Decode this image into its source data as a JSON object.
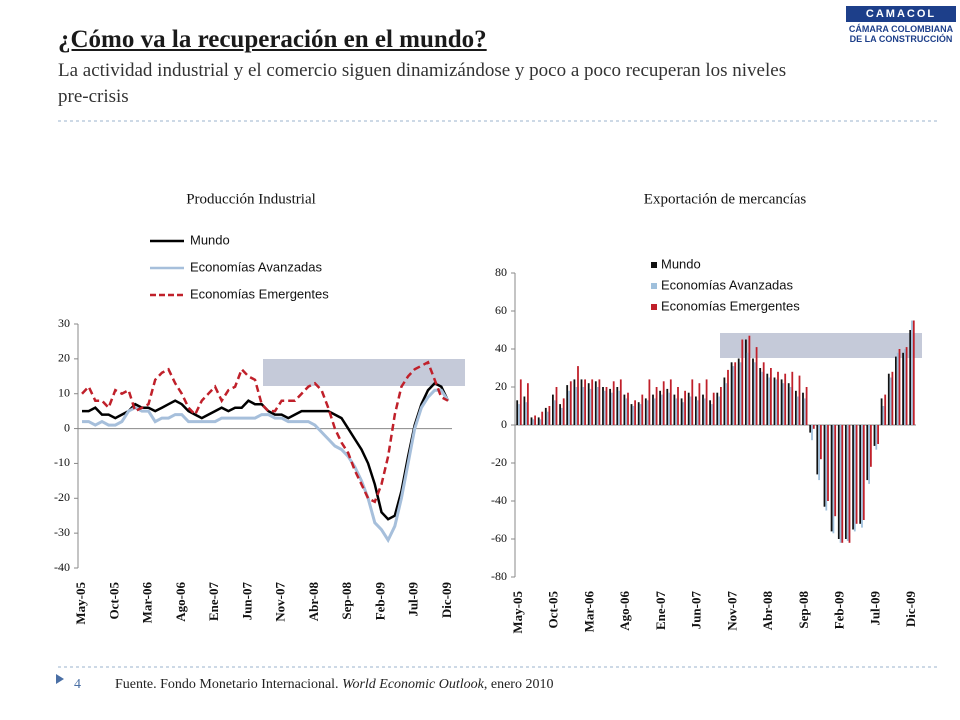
{
  "header": {
    "title": "¿Cómo va la recuperación en el mundo?",
    "subtitle": "La actividad industrial y el comercio siguen dinamizándose y poco a poco recuperan los niveles pre-crisis"
  },
  "logo": {
    "mark": "CAMACOL",
    "line1": "CÁMARA COLOMBIANA",
    "line2": "DE LA CONSTRUCCIÓN"
  },
  "footer": {
    "source_pre": "Fuente. Fondo Monetario Internacional. ",
    "source_italic": "World Economic Outlook",
    "source_post": ", enero 2010",
    "page": "4"
  },
  "chart_data": [
    {
      "type": "line",
      "title": "Producción Industrial",
      "categories": [
        "May-05",
        null,
        null,
        null,
        null,
        "Oct-05",
        null,
        null,
        null,
        null,
        "Mar-06",
        null,
        null,
        null,
        null,
        "Ago-06",
        null,
        null,
        null,
        null,
        "Ene-07",
        null,
        null,
        null,
        null,
        "Jun-07",
        null,
        null,
        null,
        null,
        "Nov-07",
        null,
        null,
        null,
        null,
        "Abr-08",
        null,
        null,
        null,
        null,
        "Sep-08",
        null,
        null,
        null,
        null,
        "Feb-09",
        null,
        null,
        null,
        null,
        "Jul-09",
        null,
        null,
        null,
        null,
        "Dic-09"
      ],
      "ylim": [
        -40,
        30
      ],
      "yticks": [
        -40,
        -30,
        -20,
        -10,
        0,
        10,
        20,
        30
      ],
      "series": [
        {
          "name": "Mundo",
          "color": "#000000",
          "values": [
            5,
            5,
            6,
            4,
            4,
            3,
            4,
            5,
            7,
            6,
            6,
            5,
            6,
            7,
            8,
            7,
            5,
            4,
            3,
            4,
            5,
            6,
            5,
            6,
            6,
            8,
            7,
            7,
            5,
            4,
            4,
            3,
            4,
            5,
            5,
            5,
            5,
            5,
            4,
            3,
            0,
            -3,
            -6,
            -10,
            -16,
            -24,
            -26,
            -25,
            -18,
            -8,
            1,
            7,
            11,
            13,
            12,
            8
          ]
        },
        {
          "name": "Economías Avanzadas",
          "color": "#a6bfdb",
          "values": [
            2,
            2,
            1,
            2,
            1,
            1,
            2,
            5,
            6,
            5,
            5,
            2,
            3,
            3,
            4,
            4,
            2,
            2,
            2,
            2,
            2,
            3,
            3,
            3,
            3,
            3,
            3,
            4,
            4,
            3,
            3,
            2,
            2,
            2,
            2,
            1,
            -1,
            -3,
            -5,
            -6,
            -8,
            -11,
            -15,
            -20,
            -27,
            -29,
            -32,
            -28,
            -20,
            -10,
            0,
            6,
            9,
            11,
            11,
            8
          ]
        },
        {
          "name": "Economías Emergentes",
          "color": "#c0202a",
          "values": [
            10,
            12,
            8,
            8,
            6,
            11,
            10,
            11,
            5,
            6,
            7,
            14,
            16,
            17,
            13,
            10,
            6,
            4,
            8,
            10,
            12,
            8,
            11,
            12,
            17,
            15,
            14,
            7,
            5,
            5,
            8,
            8,
            8,
            10,
            12,
            13,
            11,
            6,
            0,
            -4,
            -7,
            -12,
            -16,
            -20,
            -21,
            -16,
            -8,
            4,
            12,
            15,
            17,
            18,
            19,
            14,
            9,
            8
          ]
        }
      ]
    },
    {
      "type": "bar",
      "title": "Exportación de mercancías",
      "categories": [
        "May-05",
        null,
        null,
        null,
        null,
        "Oct-05",
        null,
        null,
        null,
        null,
        "Mar-06",
        null,
        null,
        null,
        null,
        "Ago-06",
        null,
        null,
        null,
        null,
        "Ene-07",
        null,
        null,
        null,
        null,
        "Jun-07",
        null,
        null,
        null,
        null,
        "Nov-07",
        null,
        null,
        null,
        null,
        "Abr-08",
        null,
        null,
        null,
        null,
        "Sep-08",
        null,
        null,
        null,
        null,
        "Feb-09",
        null,
        null,
        null,
        null,
        "Jul-09",
        null,
        null,
        null,
        null,
        "Dic-09"
      ],
      "ylim": [
        -80,
        80
      ],
      "yticks": [
        -80,
        -60,
        -40,
        -20,
        0,
        20,
        40,
        60,
        80
      ],
      "series": [
        {
          "name": "Mundo",
          "color": "#111111",
          "values": [
            13,
            15,
            4,
            4,
            9,
            16,
            11,
            21,
            24,
            24,
            22,
            23,
            20,
            19,
            20,
            16,
            11,
            12,
            14,
            16,
            18,
            19,
            16,
            14,
            17,
            15,
            16,
            13,
            17,
            25,
            33,
            35,
            45,
            35,
            30,
            27,
            25,
            24,
            22,
            18,
            17,
            -4,
            -26,
            -43,
            -56,
            -60,
            -60,
            -55,
            -52,
            -29,
            -11,
            14,
            27,
            36,
            38,
            50
          ]
        },
        {
          "name": "Economías Avanzadas",
          "color": "#9fc0dc",
          "values": [
            11,
            12,
            3,
            3,
            7,
            13,
            9,
            18,
            20,
            20,
            19,
            20,
            18,
            17,
            18,
            14,
            10,
            11,
            13,
            14,
            16,
            17,
            14,
            12,
            15,
            13,
            14,
            11,
            15,
            22,
            31,
            33,
            38,
            33,
            28,
            25,
            24,
            22,
            20,
            15,
            14,
            -8,
            -29,
            -45,
            -57,
            -62,
            -61,
            -56,
            -54,
            -31,
            -13,
            10,
            25,
            38,
            40,
            55
          ]
        },
        {
          "name": "Economías Emergentes",
          "color": "#c0202a",
          "values": [
            24,
            22,
            5,
            7,
            10,
            20,
            14,
            23,
            31,
            24,
            24,
            24,
            20,
            23,
            24,
            17,
            13,
            16,
            24,
            20,
            23,
            24,
            20,
            18,
            24,
            22,
            24,
            17,
            20,
            29,
            33,
            45,
            47,
            41,
            33,
            30,
            28,
            27,
            28,
            26,
            20,
            -2,
            -18,
            -40,
            -48,
            -62,
            -62,
            -52,
            -50,
            -22,
            -10,
            16,
            28,
            40,
            41,
            55
          ]
        }
      ]
    }
  ]
}
